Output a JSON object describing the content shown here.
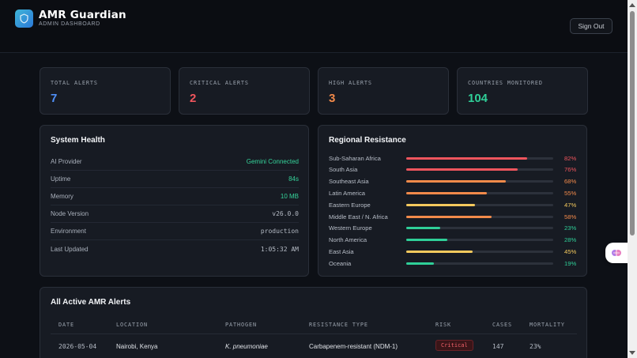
{
  "header": {
    "title": "AMR Guardian",
    "subtitle": "ADMIN DASHBOARD",
    "sign_out": "Sign Out"
  },
  "stats": [
    {
      "label": "TOTAL ALERTS",
      "value": "7",
      "color": "#4f8ff7"
    },
    {
      "label": "CRITICAL ALERTS",
      "value": "2",
      "color": "#f0555d"
    },
    {
      "label": "HIGH ALERTS",
      "value": "3",
      "color": "#f28a4a"
    },
    {
      "label": "COUNTRIES MONITORED",
      "value": "104",
      "color": "#2fcf98"
    }
  ],
  "system_health": {
    "title": "System Health",
    "rows": [
      {
        "key": "AI Provider",
        "value": "Gemini Connected",
        "color": "#35d39a"
      },
      {
        "key": "Uptime",
        "value": "84s",
        "color": "#35d39a"
      },
      {
        "key": "Memory",
        "value": "10 MB",
        "color": "#35d39a"
      },
      {
        "key": "Node Version",
        "value": "v26.0.0",
        "color": "#b5bbc5"
      },
      {
        "key": "Environment",
        "value": "production",
        "color": "#b5bbc5"
      },
      {
        "key": "Last Updated",
        "value": "1:05:32 AM",
        "color": "#b5bbc5"
      }
    ]
  },
  "regional_resistance": {
    "title": "Regional Resistance",
    "regions": [
      {
        "name": "Sub-Saharan Africa",
        "pct": 82,
        "label": "82%",
        "color": "#f0555d"
      },
      {
        "name": "South Asia",
        "pct": 76,
        "label": "76%",
        "color": "#f0555d"
      },
      {
        "name": "Southeast Asia",
        "pct": 68,
        "label": "68%",
        "color": "#f28a4a"
      },
      {
        "name": "Latin America",
        "pct": 55,
        "label": "55%",
        "color": "#f28a4a"
      },
      {
        "name": "Eastern Europe",
        "pct": 47,
        "label": "47%",
        "color": "#f4c95d"
      },
      {
        "name": "Middle East / N. Africa",
        "pct": 58,
        "label": "58%",
        "color": "#f28a4a"
      },
      {
        "name": "Western Europe",
        "pct": 23,
        "label": "23%",
        "color": "#2fcf98"
      },
      {
        "name": "North America",
        "pct": 28,
        "label": "28%",
        "color": "#2fcf98"
      },
      {
        "name": "East Asia",
        "pct": 45,
        "label": "45%",
        "color": "#f4c95d"
      },
      {
        "name": "Oceania",
        "pct": 19,
        "label": "19%",
        "color": "#2fcf98"
      }
    ]
  },
  "alerts": {
    "title": "All Active AMR Alerts",
    "columns": [
      "DATE",
      "LOCATION",
      "PATHOGEN",
      "RESISTANCE TYPE",
      "RISK",
      "CASES",
      "MORTALITY"
    ],
    "rows": [
      {
        "date": "2026-05-04",
        "location": "Nairobi, Kenya",
        "pathogen": "K. pneumoniae",
        "resistance": "Carbapenem-resistant (NDM-1)",
        "risk": "Critical",
        "cases": "147",
        "mortality": "23%"
      }
    ]
  },
  "icons": {
    "logo": "shield-icon",
    "floating": "brain-icon"
  }
}
